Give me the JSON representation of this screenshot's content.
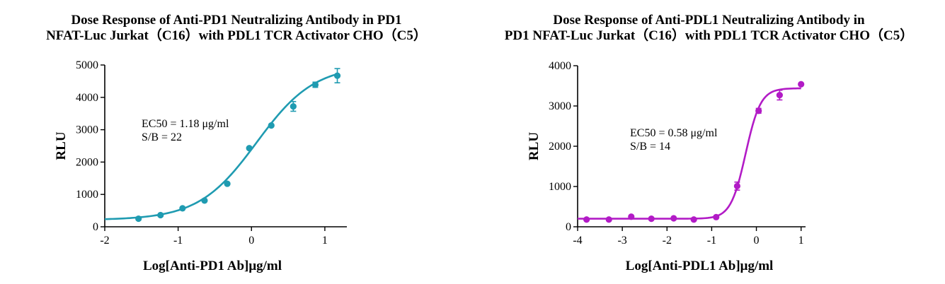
{
  "chart_data": [
    {
      "type": "scatter",
      "title": [
        "Dose Response of Anti-PD1 Neutralizing Antibody in PD1",
        "NFAT-Luc Jurkat（C16）with PDL1 TCR Activator CHO（C5）"
      ],
      "xlabel": "Log[Anti-PD1 Ab]μg/ml",
      "ylabel": "RLU",
      "xlim": [
        -2,
        1.3
      ],
      "ylim": [
        0,
        5000
      ],
      "xticks": [
        -2,
        -1,
        0,
        1
      ],
      "yticks": [
        0,
        1000,
        2000,
        3000,
        4000,
        5000
      ],
      "color": "#1f9bb1",
      "series": [
        {
          "x": [
            -1.54,
            -1.24,
            -0.94,
            -0.64,
            -0.33,
            -0.03,
            0.27,
            0.57,
            0.87,
            1.17
          ],
          "y": [
            250,
            360,
            570,
            810,
            1330,
            2430,
            3130,
            3720,
            4390,
            4670
          ],
          "err": [
            0,
            0,
            0,
            0,
            0,
            0,
            0,
            150,
            80,
            220
          ]
        }
      ],
      "fit": {
        "bottom": 210,
        "top": 5000,
        "log_ec50": 0.07,
        "hill": 1.1,
        "xrange": [
          -2,
          1.17
        ]
      },
      "annotation": [
        "EC50 = 1.18 μg/ml",
        "S/B = 22"
      ]
    },
    {
      "type": "scatter",
      "title": [
        "Dose Response of Anti-PDL1 Neutralizing Antibody in",
        "PD1 NFAT-Luc Jurkat（C16）with PDL1 TCR Activator CHO（C5）"
      ],
      "xlabel": "Log[Anti-PDL1 Ab]μg/ml",
      "ylabel": "RLU",
      "xlim": [
        -4,
        1.1
      ],
      "ylim": [
        0,
        4000
      ],
      "xticks": [
        -4,
        -3,
        -2,
        -1,
        0,
        1
      ],
      "yticks": [
        0,
        1000,
        2000,
        3000,
        4000
      ],
      "color": "#b21bc6",
      "series": [
        {
          "x": [
            -3.8,
            -3.3,
            -2.8,
            -2.35,
            -1.85,
            -1.4,
            -0.9,
            -0.43,
            0.05,
            0.52,
            1.0
          ],
          "y": [
            180,
            180,
            250,
            200,
            210,
            180,
            240,
            1010,
            2880,
            3270,
            3540
          ],
          "err": [
            0,
            0,
            0,
            0,
            0,
            0,
            0,
            100,
            60,
            120,
            0
          ]
        }
      ],
      "fit": {
        "bottom": 200,
        "top": 3440,
        "log_ec50": -0.24,
        "hill": 2.6,
        "xrange": [
          -4,
          1.0
        ]
      },
      "annotation": [
        "EC50 = 0.58 μg/ml",
        "S/B = 14"
      ]
    }
  ]
}
